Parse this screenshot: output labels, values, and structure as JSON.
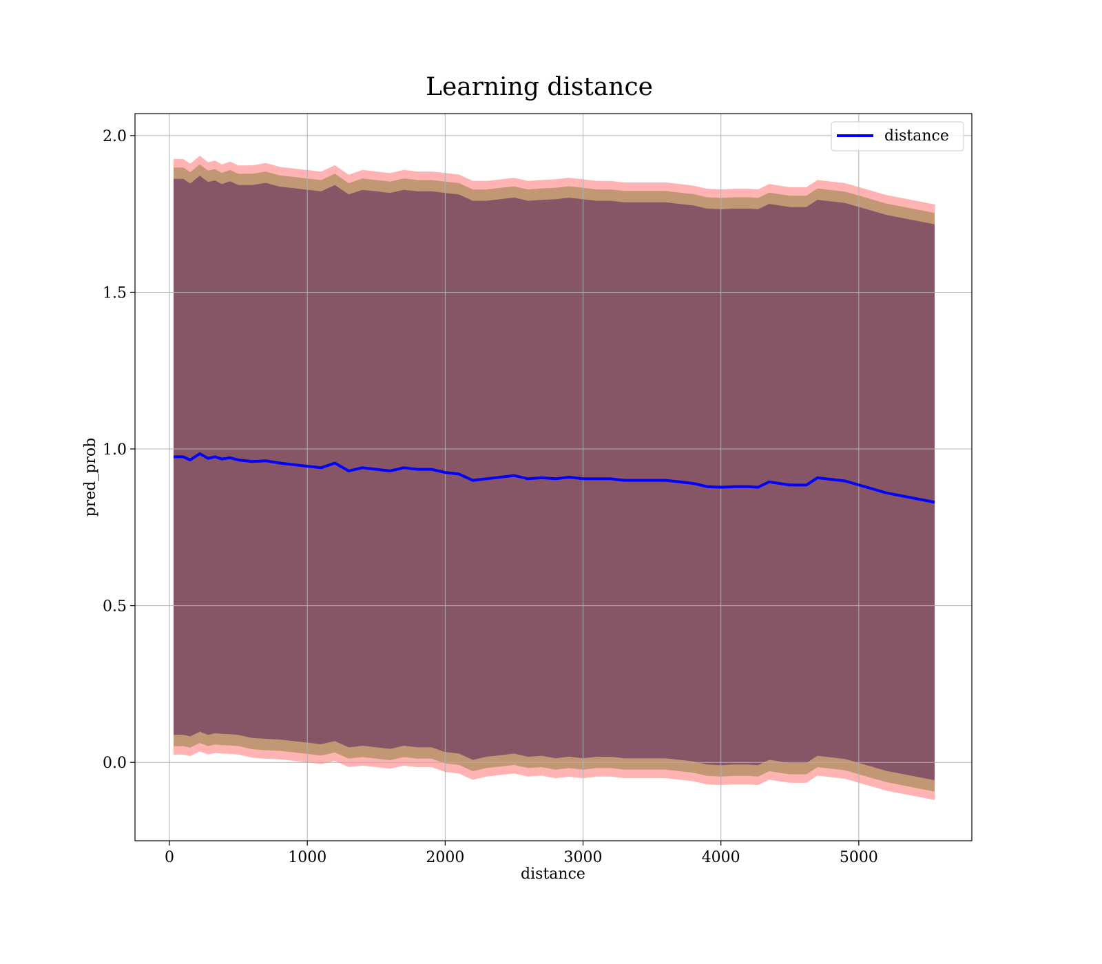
{
  "chart_data": {
    "type": "line",
    "title": "Learning distance",
    "xlabel": "distance",
    "ylabel": "pred_prob",
    "xlim": [
      -250,
      5820
    ],
    "ylim": [
      -0.25,
      2.07
    ],
    "xticks": [
      0,
      1000,
      2000,
      3000,
      4000,
      5000
    ],
    "yticks": [
      0.0,
      0.5,
      1.0,
      1.5,
      2.0
    ],
    "x_tick_labels": [
      "0",
      "1000",
      "2000",
      "3000",
      "4000",
      "5000"
    ],
    "y_tick_labels": [
      "0.0",
      "0.5",
      "1.0",
      "1.5",
      "2.0"
    ],
    "grid": true,
    "legend": {
      "placement": "top-right",
      "entries": [
        "distance"
      ]
    },
    "colors": {
      "line": "#0000ff",
      "band_outer": "#ff8080",
      "band_middle": "#8f7f3f",
      "band_inner": "#5e2a5e"
    },
    "series": [
      {
        "name": "distance",
        "x": [
          30,
          100,
          150,
          220,
          280,
          330,
          380,
          440,
          500,
          600,
          700,
          800,
          900,
          1000,
          1100,
          1200,
          1300,
          1400,
          1500,
          1600,
          1700,
          1800,
          1900,
          2000,
          2100,
          2200,
          2300,
          2400,
          2500,
          2600,
          2700,
          2800,
          2900,
          3000,
          3100,
          3200,
          3300,
          3400,
          3500,
          3600,
          3700,
          3800,
          3900,
          4000,
          4100,
          4200,
          4270,
          4350,
          4500,
          4620,
          4700,
          4900,
          5200,
          5550
        ],
        "y": [
          0.975,
          0.975,
          0.965,
          0.985,
          0.97,
          0.975,
          0.968,
          0.972,
          0.965,
          0.96,
          0.962,
          0.955,
          0.95,
          0.945,
          0.94,
          0.955,
          0.93,
          0.94,
          0.935,
          0.93,
          0.94,
          0.935,
          0.935,
          0.925,
          0.92,
          0.9,
          0.905,
          0.91,
          0.915,
          0.905,
          0.908,
          0.905,
          0.91,
          0.905,
          0.905,
          0.905,
          0.9,
          0.9,
          0.9,
          0.9,
          0.895,
          0.89,
          0.88,
          0.878,
          0.88,
          0.88,
          0.878,
          0.895,
          0.885,
          0.885,
          0.908,
          0.898,
          0.86,
          0.83
        ],
        "std": [
          0.905,
          0.905,
          0.9,
          0.905,
          0.9,
          0.9,
          0.895,
          0.9,
          0.895,
          0.9,
          0.905,
          0.9,
          0.9,
          0.9,
          0.9,
          0.905,
          0.9,
          0.905,
          0.905,
          0.905,
          0.905,
          0.905,
          0.905,
          0.91,
          0.91,
          0.91,
          0.905,
          0.905,
          0.905,
          0.905,
          0.905,
          0.91,
          0.91,
          0.91,
          0.905,
          0.905,
          0.905,
          0.905,
          0.905,
          0.905,
          0.905,
          0.905,
          0.905,
          0.905,
          0.905,
          0.905,
          0.905,
          0.905,
          0.905,
          0.905,
          0.905,
          0.905,
          0.905,
          0.905
        ]
      }
    ]
  }
}
